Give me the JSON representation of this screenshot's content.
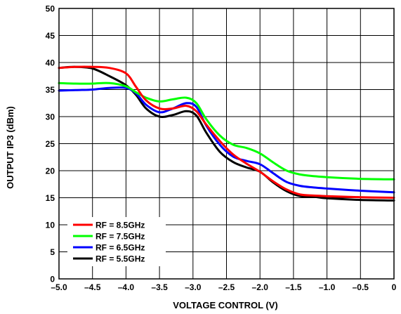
{
  "chart_data": {
    "type": "line",
    "xlabel": "VOLTAGE CONTROL (V)",
    "ylabel": "OUTPUT IP3 (dBm)",
    "xlim": [
      -5.0,
      0
    ],
    "ylim": [
      0,
      50
    ],
    "grid": true,
    "legend_position": "bottom-left",
    "x_ticks": [
      "–5.0",
      "–4.5",
      "–4.0",
      "–3.5",
      "–3.0",
      "–2.5",
      "–2.0",
      "–1.5",
      "–1.0",
      "–0.5",
      "0"
    ],
    "y_ticks": [
      "0",
      "5",
      "10",
      "15",
      "20",
      "25",
      "30",
      "35",
      "40",
      "45",
      "50"
    ],
    "series": [
      {
        "name": "RF = 8.5GHz",
        "color": "#ff0000",
        "x": [
          -5.0,
          -4.75,
          -4.5,
          -4.25,
          -4.0,
          -3.85,
          -3.7,
          -3.5,
          -3.3,
          -3.1,
          -2.95,
          -2.8,
          -2.6,
          -2.4,
          -2.2,
          -2.0,
          -1.8,
          -1.6,
          -1.4,
          -1.2,
          -1.0,
          -0.5,
          0
        ],
        "y": [
          39.0,
          39.2,
          39.2,
          39.0,
          38.0,
          35.5,
          33.0,
          31.5,
          31.5,
          32.0,
          31.0,
          28.5,
          25.5,
          23.0,
          21.3,
          19.8,
          18.0,
          16.5,
          15.6,
          15.4,
          15.3,
          15.1,
          15.0
        ]
      },
      {
        "name": "RF = 7.5GHz",
        "color": "#00ff00",
        "x": [
          -5.0,
          -4.75,
          -4.5,
          -4.25,
          -4.0,
          -3.85,
          -3.7,
          -3.5,
          -3.3,
          -3.1,
          -2.95,
          -2.8,
          -2.6,
          -2.4,
          -2.2,
          -2.0,
          -1.8,
          -1.6,
          -1.4,
          -1.2,
          -1.0,
          -0.5,
          0
        ],
        "y": [
          36.2,
          36.1,
          36.1,
          36.2,
          35.6,
          34.5,
          33.5,
          32.8,
          33.2,
          33.5,
          32.5,
          29.5,
          26.5,
          24.8,
          24.2,
          23.2,
          21.5,
          20.0,
          19.3,
          19.0,
          18.8,
          18.5,
          18.4
        ]
      },
      {
        "name": "RF = 6.5GHz",
        "color": "#0000ff",
        "x": [
          -5.0,
          -4.75,
          -4.5,
          -4.25,
          -4.0,
          -3.85,
          -3.7,
          -3.5,
          -3.3,
          -3.1,
          -2.95,
          -2.8,
          -2.6,
          -2.4,
          -2.2,
          -2.0,
          -1.8,
          -1.6,
          -1.4,
          -1.2,
          -1.0,
          -0.5,
          0
        ],
        "y": [
          34.8,
          34.9,
          35.0,
          35.3,
          35.3,
          34.3,
          32.2,
          30.8,
          31.5,
          32.5,
          31.8,
          28.3,
          24.8,
          22.6,
          21.8,
          21.2,
          19.5,
          17.9,
          17.2,
          16.9,
          16.7,
          16.3,
          16.0
        ]
      },
      {
        "name": "RF = 5.5GHz",
        "color": "#000000",
        "x": [
          -5.0,
          -4.75,
          -4.5,
          -4.25,
          -4.0,
          -3.85,
          -3.7,
          -3.5,
          -3.3,
          -3.1,
          -2.95,
          -2.8,
          -2.6,
          -2.4,
          -2.2,
          -2.0,
          -1.8,
          -1.6,
          -1.4,
          -1.2,
          -1.0,
          -0.5,
          0
        ],
        "y": [
          39.0,
          39.2,
          38.9,
          37.5,
          35.8,
          34.0,
          31.5,
          30.0,
          30.3,
          31.0,
          30.2,
          27.0,
          23.5,
          21.6,
          20.6,
          19.8,
          17.8,
          16.2,
          15.3,
          15.2,
          14.9,
          14.6,
          14.5
        ]
      }
    ]
  }
}
